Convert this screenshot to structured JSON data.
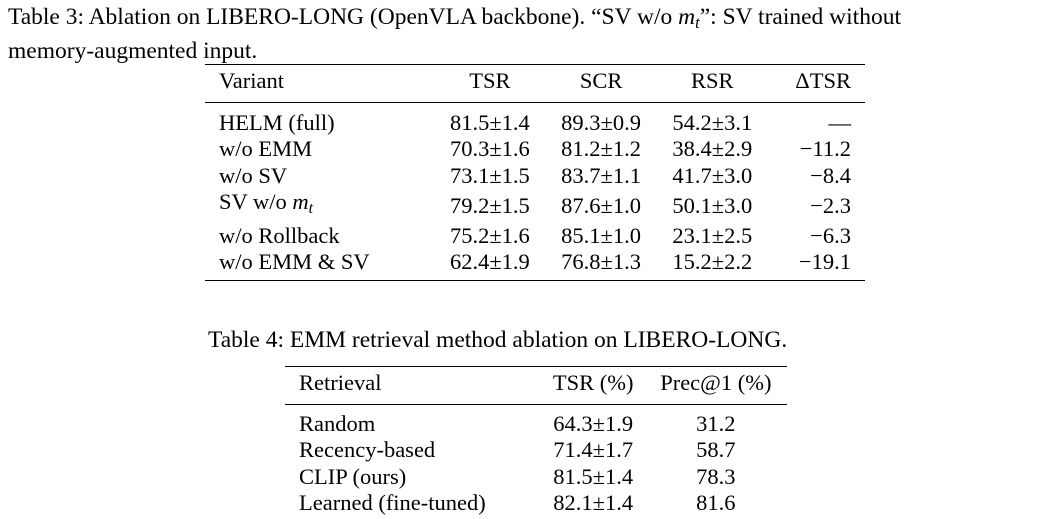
{
  "table3": {
    "caption_line1_pre": "Table 3:  Ablation on LIBERO-LONG (OpenVLA backbone).  “SV w/o ",
    "caption_math": "m",
    "caption_math_sub": "t",
    "caption_line1_post": "”:  SV trained without",
    "caption_line2": "memory-augmented input.",
    "headers": [
      "Variant",
      "TSR",
      "SCR",
      "RSR",
      "ΔTSR"
    ],
    "rows": [
      {
        "variant": "HELM (full)",
        "tsr": "81.5±1.4",
        "scr": "89.3±0.9",
        "rsr": "54.2±3.1",
        "dtsr": "—"
      },
      {
        "variant": "w/o EMM",
        "tsr": "70.3±1.6",
        "scr": "81.2±1.2",
        "rsr": "38.4±2.9",
        "dtsr": "−11.2"
      },
      {
        "variant": "w/o SV",
        "tsr": "73.1±1.5",
        "scr": "83.7±1.1",
        "rsr": "41.7±3.0",
        "dtsr": "−8.4"
      },
      {
        "variant_pre": "SV w/o ",
        "variant_math": "m",
        "variant_sub": "t",
        "tsr": "79.2±1.5",
        "scr": "87.6±1.0",
        "rsr": "50.1±3.0",
        "dtsr": "−2.3"
      },
      {
        "variant": "w/o Rollback",
        "tsr": "75.2±1.6",
        "scr": "85.1±1.0",
        "rsr": "23.1±2.5",
        "dtsr": "−6.3"
      },
      {
        "variant": "w/o EMM & SV",
        "tsr": "62.4±1.9",
        "scr": "76.8±1.3",
        "rsr": "15.2±2.2",
        "dtsr": "−19.1"
      }
    ]
  },
  "table4": {
    "caption": "Table 4: EMM retrieval method ablation on LIBERO-LONG.",
    "headers": [
      "Retrieval",
      "TSR (%)",
      "Prec@1 (%)"
    ],
    "rows": [
      {
        "method": "Random",
        "tsr": "64.3±1.9",
        "prec": "31.2"
      },
      {
        "method": "Recency-based",
        "tsr": "71.4±1.7",
        "prec": "58.7"
      },
      {
        "method": "CLIP (ours)",
        "tsr": "81.5±1.4",
        "prec": "78.3"
      },
      {
        "method": "Learned (fine-tuned)",
        "tsr": "82.1±1.4",
        "prec": "81.6"
      }
    ]
  }
}
